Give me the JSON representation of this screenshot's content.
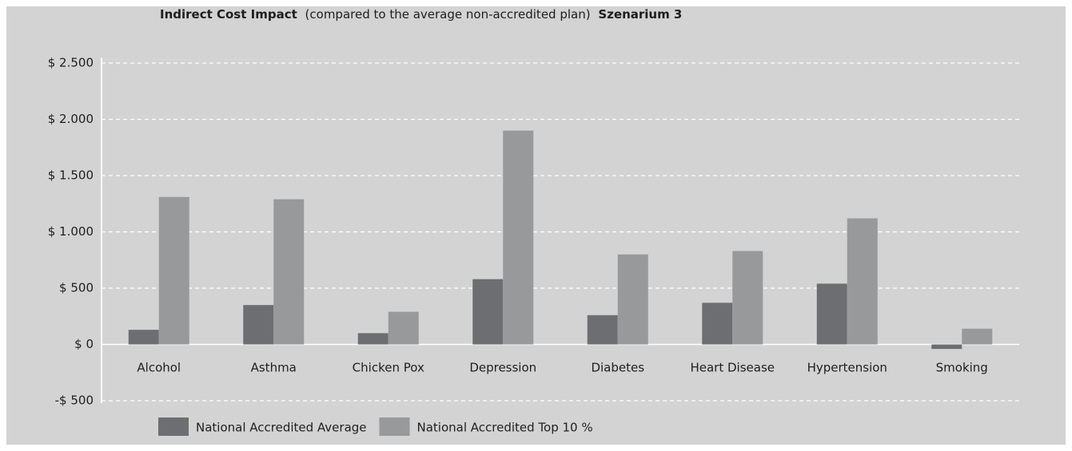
{
  "chart_data": {
    "type": "bar",
    "title": {
      "bold": "Indirect Cost Impact",
      "text": "(compared to the average non-accredited plan)",
      "suffix": "Szenarium 3"
    },
    "categories": [
      "Alcohol",
      "Asthma",
      "Chicken Pox",
      "Depression",
      "Diabetes",
      "Heart Disease",
      "Hypertension",
      "Smoking"
    ],
    "series": [
      {
        "name": "National Accredited Average",
        "color": "#6d6e71",
        "values": [
          130,
          350,
          100,
          580,
          260,
          370,
          540,
          -40
        ]
      },
      {
        "name": "National Accredited Top 10 %",
        "color": "#98999b",
        "values": [
          1310,
          1290,
          290,
          1900,
          800,
          830,
          1120,
          140
        ]
      }
    ],
    "ylim": [
      -500,
      2500
    ],
    "yticks": [
      {
        "value": -500,
        "label": "-$ 500"
      },
      {
        "value": 0,
        "label": "$ 0"
      },
      {
        "value": 500,
        "label": "$ 500"
      },
      {
        "value": 1000,
        "label": "$ 1.000"
      },
      {
        "value": 1500,
        "label": "$ 1.500"
      },
      {
        "value": 2000,
        "label": "$ 2.000"
      },
      {
        "value": 2500,
        "label": "$ 2.500"
      }
    ],
    "grid": true
  }
}
